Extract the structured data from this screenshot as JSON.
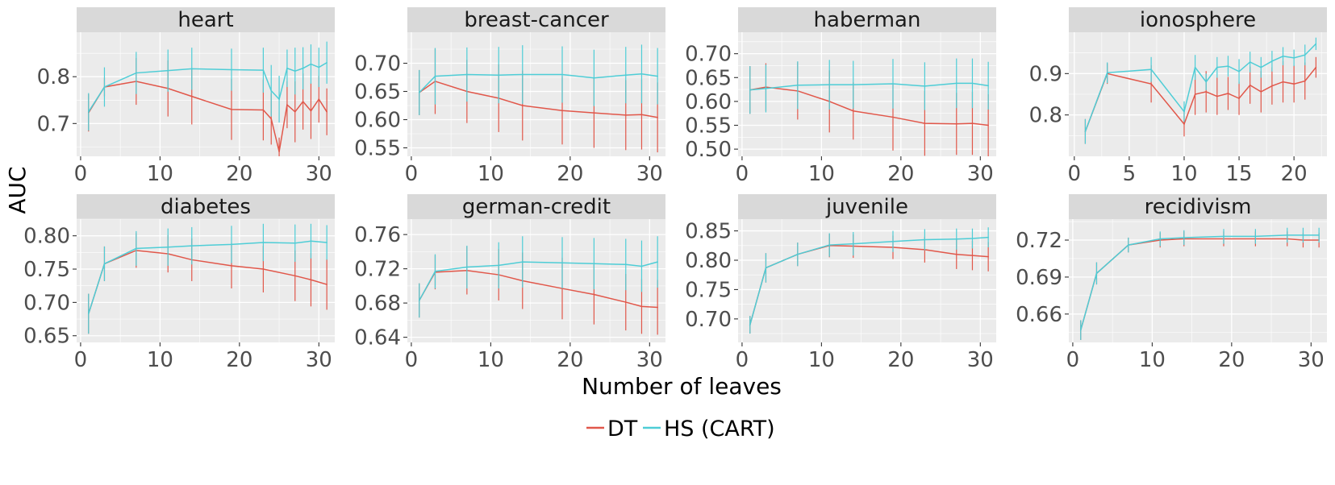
{
  "chart_data": {
    "type": "line",
    "xlabel": "Number of leaves",
    "ylabel": "AUC",
    "legend": {
      "placement": "bottom",
      "entries": [
        {
          "name": "DT",
          "color": "#e1574a"
        },
        {
          "name": "HS (CART)",
          "color": "#4ecdd6"
        }
      ]
    },
    "grid": true,
    "panels": [
      {
        "title": "heart",
        "xlim": [
          -0.5,
          32
        ],
        "ylim": [
          0.63,
          0.895
        ],
        "xticks": [
          0,
          10,
          20,
          30
        ],
        "xtick_labels": [
          "0",
          "10",
          "20",
          "30"
        ],
        "yticks": [
          0.7,
          0.8
        ],
        "ytick_labels": [
          "0.7",
          "0.8"
        ],
        "series": [
          {
            "name": "DT",
            "color": "#e1574a",
            "x": [
              1,
              3,
              7,
              11,
              14,
              19,
              23,
              24,
              25,
              26,
              27,
              28,
              29,
              30,
              31
            ],
            "y": [
              0.723,
              0.778,
              0.79,
              0.775,
              0.758,
              0.73,
              0.729,
              0.71,
              0.64,
              0.74,
              0.725,
              0.747,
              0.727,
              0.752,
              0.725
            ],
            "err": [
              0.04,
              0.02,
              0.05,
              0.06,
              0.06,
              0.065,
              0.065,
              0.055,
              0.03,
              0.05,
              0.065,
              0.06,
              0.06,
              0.05,
              0.05
            ]
          },
          {
            "name": "HS (CART)",
            "color": "#4ecdd6",
            "x": [
              1,
              3,
              7,
              11,
              14,
              19,
              23,
              24,
              25,
              26,
              27,
              28,
              29,
              30,
              31
            ],
            "y": [
              0.725,
              0.778,
              0.808,
              0.813,
              0.817,
              0.815,
              0.814,
              0.77,
              0.752,
              0.818,
              0.812,
              0.818,
              0.827,
              0.82,
              0.83
            ],
            "err": [
              0.04,
              0.042,
              0.045,
              0.045,
              0.045,
              0.045,
              0.048,
              0.055,
              0.05,
              0.04,
              0.05,
              0.045,
              0.042,
              0.042,
              0.045
            ]
          }
        ]
      },
      {
        "title": "breast-cancer",
        "xlim": [
          -0.5,
          32
        ],
        "ylim": [
          0.535,
          0.755
        ],
        "xticks": [
          0,
          10,
          20,
          30
        ],
        "xtick_labels": [
          "0",
          "10",
          "20",
          "30"
        ],
        "yticks": [
          0.55,
          0.6,
          0.65,
          0.7
        ],
        "ytick_labels": [
          "0.55",
          "0.60",
          "0.65",
          "0.70"
        ],
        "series": [
          {
            "name": "DT",
            "color": "#e1574a",
            "x": [
              1,
              3,
              7,
              11,
              14,
              19,
              23,
              27,
              29,
              31
            ],
            "y": [
              0.648,
              0.668,
              0.65,
              0.638,
              0.625,
              0.616,
              0.612,
              0.608,
              0.609,
              0.604
            ],
            "err": [
              0.04,
              0.058,
              0.056,
              0.06,
              0.062,
              0.06,
              0.062,
              0.062,
              0.062,
              0.062
            ]
          },
          {
            "name": "HS (CART)",
            "color": "#4ecdd6",
            "x": [
              1,
              3,
              7,
              11,
              14,
              19,
              23,
              27,
              29,
              31
            ],
            "y": [
              0.648,
              0.677,
              0.68,
              0.679,
              0.68,
              0.68,
              0.674,
              0.679,
              0.681,
              0.677
            ],
            "err": [
              0.04,
              0.05,
              0.048,
              0.05,
              0.052,
              0.05,
              0.05,
              0.05,
              0.052,
              0.05
            ]
          }
        ]
      },
      {
        "title": "haberman",
        "xlim": [
          -0.5,
          32
        ],
        "ylim": [
          0.485,
          0.745
        ],
        "xticks": [
          0,
          10,
          20,
          30
        ],
        "xtick_labels": [
          "0",
          "10",
          "20",
          "30"
        ],
        "yticks": [
          0.5,
          0.55,
          0.6,
          0.65,
          0.7
        ],
        "ytick_labels": [
          "0.50",
          "0.55",
          "0.60",
          "0.65",
          "0.70"
        ],
        "series": [
          {
            "name": "DT",
            "color": "#e1574a",
            "x": [
              1,
              3,
              7,
              11,
              14,
              19,
              23,
              27,
              29,
              31
            ],
            "y": [
              0.624,
              0.63,
              0.622,
              0.6,
              0.58,
              0.567,
              0.554,
              0.553,
              0.554,
              0.55
            ],
            "err": [
              0.05,
              0.05,
              0.06,
              0.065,
              0.06,
              0.07,
              0.068,
              0.065,
              0.066,
              0.065
            ]
          },
          {
            "name": "HS (CART)",
            "color": "#4ecdd6",
            "x": [
              1,
              3,
              7,
              11,
              14,
              19,
              23,
              27,
              29,
              31
            ],
            "y": [
              0.624,
              0.627,
              0.634,
              0.635,
              0.635,
              0.637,
              0.632,
              0.638,
              0.638,
              0.633
            ],
            "err": [
              0.05,
              0.05,
              0.05,
              0.052,
              0.05,
              0.052,
              0.05,
              0.052,
              0.052,
              0.05
            ]
          }
        ]
      },
      {
        "title": "ionosphere",
        "xlim": [
          -0.5,
          23
        ],
        "ylim": [
          0.7,
          1.0
        ],
        "xticks": [
          0,
          5,
          10,
          15,
          20
        ],
        "xtick_labels": [
          "0",
          "5",
          "10",
          "15",
          "20"
        ],
        "yticks": [
          0.8,
          0.9
        ],
        "ytick_labels": [
          "0.8",
          "0.9"
        ],
        "series": [
          {
            "name": "DT",
            "color": "#e1574a",
            "x": [
              1,
              3,
              7,
              10,
              11,
              12,
              13,
              14,
              15,
              16,
              17,
              18,
              19,
              20,
              21,
              22
            ],
            "y": [
              0.76,
              0.9,
              0.875,
              0.778,
              0.85,
              0.856,
              0.845,
              0.852,
              0.84,
              0.872,
              0.856,
              0.87,
              0.88,
              0.875,
              0.882,
              0.915
            ],
            "err": [
              0.03,
              0.025,
              0.045,
              0.03,
              0.05,
              0.05,
              0.045,
              0.04,
              0.04,
              0.045,
              0.05,
              0.045,
              0.05,
              0.045,
              0.045,
              0.025
            ]
          },
          {
            "name": "HS (CART)",
            "color": "#4ecdd6",
            "x": [
              1,
              3,
              7,
              10,
              11,
              12,
              13,
              14,
              15,
              16,
              17,
              18,
              19,
              20,
              21,
              22
            ],
            "y": [
              0.76,
              0.902,
              0.91,
              0.808,
              0.915,
              0.88,
              0.915,
              0.918,
              0.905,
              0.928,
              0.915,
              0.93,
              0.942,
              0.938,
              0.945,
              0.972
            ],
            "err": [
              0.03,
              0.025,
              0.03,
              0.025,
              0.03,
              0.02,
              0.025,
              0.025,
              0.03,
              0.025,
              0.025,
              0.025,
              0.022,
              0.02,
              0.025,
              0.015
            ]
          }
        ]
      },
      {
        "title": "diabetes",
        "xlim": [
          -0.5,
          32
        ],
        "ylim": [
          0.64,
          0.825
        ],
        "xticks": [
          0,
          10,
          20,
          30
        ],
        "xtick_labels": [
          "0",
          "10",
          "20",
          "30"
        ],
        "yticks": [
          0.65,
          0.7,
          0.75,
          0.8
        ],
        "ytick_labels": [
          "0.65",
          "0.70",
          "0.75",
          "0.80"
        ],
        "series": [
          {
            "name": "DT",
            "color": "#e1574a",
            "x": [
              1,
              3,
              7,
              11,
              14,
              19,
              23,
              27,
              29,
              31
            ],
            "y": [
              0.683,
              0.758,
              0.778,
              0.773,
              0.764,
              0.755,
              0.75,
              0.74,
              0.734,
              0.727
            ],
            "err": [
              0.03,
              0.026,
              0.026,
              0.028,
              0.032,
              0.034,
              0.035,
              0.038,
              0.04,
              0.038
            ]
          },
          {
            "name": "HS (CART)",
            "color": "#4ecdd6",
            "x": [
              1,
              3,
              7,
              11,
              14,
              19,
              23,
              27,
              29,
              31
            ],
            "y": [
              0.683,
              0.758,
              0.781,
              0.783,
              0.785,
              0.787,
              0.79,
              0.789,
              0.792,
              0.79
            ],
            "err": [
              0.03,
              0.026,
              0.026,
              0.028,
              0.028,
              0.028,
              0.028,
              0.028,
              0.026,
              0.026
            ]
          }
        ]
      },
      {
        "title": "german-credit",
        "xlim": [
          -0.5,
          32
        ],
        "ylim": [
          0.634,
          0.778
        ],
        "xticks": [
          0,
          10,
          20,
          30
        ],
        "xtick_labels": [
          "0",
          "10",
          "20",
          "30"
        ],
        "yticks": [
          0.64,
          0.68,
          0.72,
          0.76
        ],
        "ytick_labels": [
          "0.64",
          "0.68",
          "0.72",
          "0.76"
        ],
        "series": [
          {
            "name": "DT",
            "color": "#e1574a",
            "x": [
              1,
              3,
              7,
              11,
              14,
              19,
              23,
              27,
              29,
              31
            ],
            "y": [
              0.683,
              0.716,
              0.718,
              0.713,
              0.706,
              0.697,
              0.69,
              0.681,
              0.676,
              0.675
            ],
            "err": [
              0.02,
              0.02,
              0.028,
              0.03,
              0.033,
              0.036,
              0.035,
              0.033,
              0.032,
              0.032
            ]
          },
          {
            "name": "HS (CART)",
            "color": "#4ecdd6",
            "x": [
              1,
              3,
              7,
              11,
              14,
              19,
              23,
              27,
              29,
              31
            ],
            "y": [
              0.683,
              0.717,
              0.722,
              0.724,
              0.728,
              0.727,
              0.726,
              0.725,
              0.723,
              0.728
            ],
            "err": [
              0.02,
              0.02,
              0.025,
              0.027,
              0.03,
              0.03,
              0.03,
              0.03,
              0.03,
              0.03
            ]
          }
        ]
      },
      {
        "title": "juvenile",
        "xlim": [
          -0.5,
          32
        ],
        "ylim": [
          0.66,
          0.87
        ],
        "xticks": [
          0,
          10,
          20,
          30
        ],
        "xtick_labels": [
          "0",
          "10",
          "20",
          "30"
        ],
        "yticks": [
          0.7,
          0.75,
          0.8,
          0.85
        ],
        "ytick_labels": [
          "0.70",
          "0.75",
          "0.80",
          "0.85"
        ],
        "series": [
          {
            "name": "DT",
            "color": "#e1574a",
            "x": [
              1,
              3,
              7,
              11,
              14,
              19,
              23,
              27,
              29,
              31
            ],
            "y": [
              0.69,
              0.787,
              0.81,
              0.825,
              0.824,
              0.822,
              0.818,
              0.81,
              0.808,
              0.806
            ],
            "err": [
              0.015,
              0.025,
              0.02,
              0.02,
              0.02,
              0.02,
              0.022,
              0.025,
              0.025,
              0.025
            ]
          },
          {
            "name": "HS (CART)",
            "color": "#4ecdd6",
            "x": [
              1,
              3,
              7,
              11,
              14,
              19,
              23,
              27,
              29,
              31
            ],
            "y": [
              0.69,
              0.787,
              0.81,
              0.826,
              0.828,
              0.832,
              0.835,
              0.836,
              0.837,
              0.839
            ],
            "err": [
              0.015,
              0.025,
              0.02,
              0.02,
              0.02,
              0.018,
              0.018,
              0.018,
              0.017,
              0.017
            ]
          }
        ]
      },
      {
        "title": "recidivism",
        "xlim": [
          -0.5,
          32
        ],
        "ylim": [
          0.637,
          0.737
        ],
        "xticks": [
          0,
          10,
          20,
          30
        ],
        "xtick_labels": [
          "0",
          "10",
          "20",
          "30"
        ],
        "yticks": [
          0.66,
          0.69,
          0.72
        ],
        "ytick_labels": [
          "0.66",
          "0.69",
          "0.72"
        ],
        "series": [
          {
            "name": "DT",
            "color": "#e1574a",
            "x": [
              1,
              3,
              7,
              11,
              14,
              19,
              23,
              27,
              29,
              31
            ],
            "y": [
              0.647,
              0.693,
              0.716,
              0.72,
              0.721,
              0.721,
              0.721,
              0.721,
              0.72,
              0.72
            ],
            "err": [
              0.008,
              0.009,
              0.006,
              0.006,
              0.006,
              0.006,
              0.006,
              0.006,
              0.006,
              0.006
            ]
          },
          {
            "name": "HS (CART)",
            "color": "#4ecdd6",
            "x": [
              1,
              3,
              7,
              11,
              14,
              19,
              23,
              27,
              29,
              31
            ],
            "y": [
              0.647,
              0.693,
              0.716,
              0.721,
              0.722,
              0.723,
              0.723,
              0.724,
              0.724,
              0.724
            ],
            "err": [
              0.008,
              0.009,
              0.006,
              0.006,
              0.006,
              0.006,
              0.006,
              0.006,
              0.006,
              0.006
            ]
          }
        ]
      }
    ]
  }
}
